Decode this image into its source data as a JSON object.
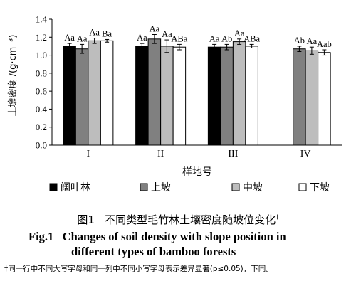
{
  "chart_data": {
    "type": "bar",
    "ylabel": "土壤密度 /(g·cm⁻³)",
    "xlabel": "样地号",
    "categories": [
      "I",
      "II",
      "III",
      "IV"
    ],
    "ylim": [
      0,
      1.4
    ],
    "yticks": [
      "0.0",
      "0.2",
      "0.4",
      "0.6",
      "0.8",
      "1.0",
      "1.2",
      "1.4"
    ],
    "legend_position": "bottom",
    "series": [
      {
        "name": "阔叶林",
        "color": "#000000",
        "values": [
          1.1,
          1.1,
          1.09,
          null
        ],
        "errors": [
          0.03,
          0.03,
          0.03,
          null
        ],
        "labels": [
          "Aa",
          "Aa",
          "Aa",
          ""
        ]
      },
      {
        "name": "上坡",
        "color": "#808080",
        "values": [
          1.07,
          1.18,
          1.09,
          1.07
        ],
        "errors": [
          0.05,
          0.05,
          0.03,
          0.03
        ],
        "labels": [
          "Aa",
          "Aa",
          "Ab",
          "Ab"
        ]
      },
      {
        "name": "中坡",
        "color": "#bdbdbd",
        "values": [
          1.16,
          1.1,
          1.15,
          1.05
        ],
        "errors": [
          0.03,
          0.07,
          0.03,
          0.04
        ],
        "labels": [
          "Aa",
          "Aa",
          "Aa",
          "Aa"
        ]
      },
      {
        "name": "下坡",
        "color": "#ffffff",
        "values": [
          1.16,
          1.09,
          1.1,
          1.03
        ],
        "errors": [
          0.015,
          0.03,
          0.02,
          0.03
        ],
        "labels": [
          "Ba",
          "ABa",
          "ABa",
          "Aab"
        ]
      }
    ]
  },
  "caption": {
    "cn_prefix": "图1",
    "cn_title": "不同类型毛竹林土壤密度随坡位变化",
    "cn_mark": "†",
    "en_prefix": "Fig.1",
    "en_line1": "Changes of soil density with slope position in",
    "en_line2": "different types of bamboo forests",
    "note": "†同一行中不同大写字母和同一列中不同小写字母表示差异显著(p≤0.05)，下同。"
  }
}
